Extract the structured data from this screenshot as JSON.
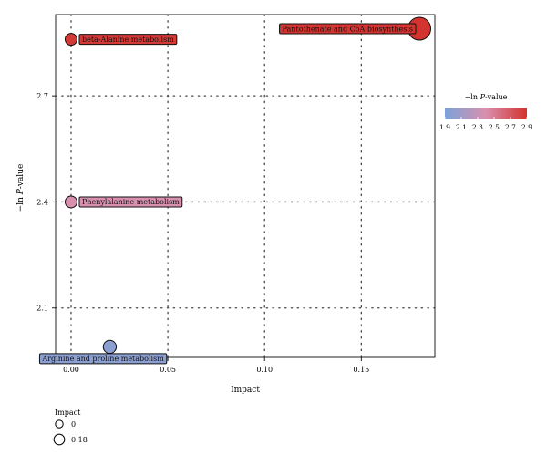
{
  "chart_data": {
    "type": "scatter",
    "xlabel": "Impact",
    "ylabel_prefix": "−ln ",
    "ylabel_italic": "P",
    "ylabel_suffix": "-value",
    "xlim": [
      -0.008,
      0.188
    ],
    "ylim": [
      1.96,
      2.93
    ],
    "xticks": [
      0.0,
      0.05,
      0.1,
      0.15
    ],
    "xtick_labels": [
      "0.00",
      "0.05",
      "0.10",
      "0.15"
    ],
    "yticks": [
      2.1,
      2.4,
      2.7
    ],
    "ytick_labels": [
      "2.1",
      "2.4",
      "2.7"
    ],
    "grid": "dotted",
    "points": [
      {
        "label": "Pantothenate and CoA biosynthesis",
        "impact": 0.18,
        "neg_ln_p": 2.89
      },
      {
        "label": "beta-Alanine metabolism",
        "impact": 0.0,
        "neg_ln_p": 2.86
      },
      {
        "label": "Phenylalanine metabolism",
        "impact": 0.0,
        "neg_ln_p": 2.4
      },
      {
        "label": "Arginine and proline metabolism",
        "impact": 0.02,
        "neg_ln_p": 1.99
      }
    ],
    "color_legend": {
      "title_prefix": "−ln ",
      "title_italic": "P",
      "title_suffix": "-value",
      "min": 1.9,
      "max": 2.9,
      "ticks": [
        "1.9",
        "2.1",
        "2.3",
        "2.5",
        "2.7",
        "2.9"
      ],
      "low_color": "#7ba3d9",
      "mid_color": "#d98fae",
      "high_color": "#d3322c",
      "placement": "right"
    },
    "size_legend": {
      "title": "Impact",
      "entries": [
        {
          "label": "0",
          "value": 0.0
        },
        {
          "label": "0.18",
          "value": 0.18
        }
      ],
      "placement": "bottom-left"
    }
  }
}
